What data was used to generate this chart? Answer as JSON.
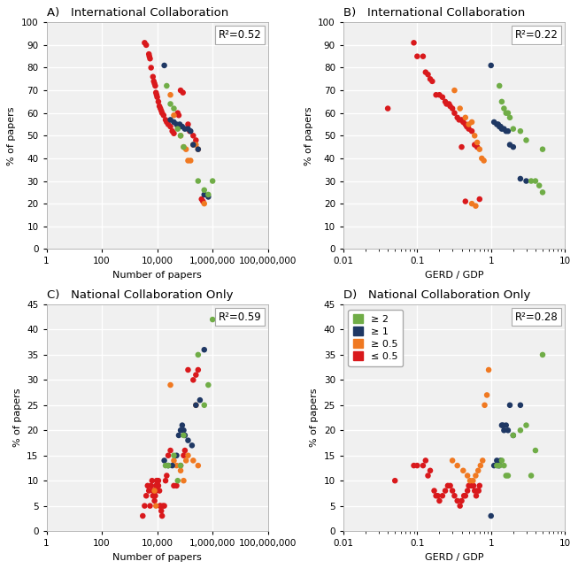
{
  "colors": {
    "red": "#d9191c",
    "orange": "#f07921",
    "blue": "#1f3864",
    "green": "#70ad47"
  },
  "legend": {
    "ge2": "≥ 2",
    "ge1": "≥ 1",
    "ge05": "≥ 0.5",
    "le05": "≤ 0.5"
  },
  "panel_A": {
    "red_x": [
      3500,
      4000,
      5000,
      5200,
      5500,
      6000,
      7000,
      7500,
      8000,
      8500,
      9000,
      9500,
      10000,
      11000,
      12000,
      13000,
      14000,
      15000,
      17000,
      20000,
      22000,
      25000,
      30000,
      35000,
      40000,
      55000,
      60000,
      70000,
      85000,
      130000,
      150000,
      200000,
      250000,
      400000,
      450000
    ],
    "red_y": [
      91,
      90,
      86,
      85,
      84,
      80,
      76,
      74,
      73,
      72,
      69,
      68,
      67,
      65,
      63,
      62,
      61,
      60,
      59,
      57,
      56,
      55,
      54,
      52,
      51,
      60,
      59,
      70,
      69,
      55,
      52,
      50,
      48,
      22,
      21
    ],
    "orange_x": [
      30000,
      40000,
      55000,
      70000,
      90000,
      110000,
      130000,
      160000,
      200000,
      250000,
      300000,
      500000
    ],
    "orange_y": [
      68,
      59,
      54,
      50,
      45,
      44,
      39,
      39,
      46,
      46,
      44,
      20
    ],
    "blue_x": [
      18000,
      30000,
      40000,
      50000,
      65000,
      80000,
      100000,
      130000,
      160000,
      200000,
      300000,
      500000,
      700000
    ],
    "blue_y": [
      81,
      57,
      56,
      55,
      55,
      54,
      53,
      53,
      52,
      46,
      44,
      24,
      23
    ],
    "green_x": [
      22000,
      30000,
      40000,
      55000,
      70000,
      90000,
      300000,
      500000,
      700000,
      1000000
    ],
    "green_y": [
      72,
      64,
      62,
      53,
      50,
      45,
      30,
      26,
      24,
      30
    ]
  },
  "panel_B": {
    "red_x": [
      0.04,
      0.09,
      0.1,
      0.12,
      0.13,
      0.14,
      0.15,
      0.16,
      0.18,
      0.2,
      0.22,
      0.24,
      0.25,
      0.27,
      0.28,
      0.3,
      0.32,
      0.35,
      0.37,
      0.4,
      0.42,
      0.45,
      0.47,
      0.5,
      0.55,
      0.6,
      0.65,
      0.7,
      0.4,
      0.45
    ],
    "red_y": [
      62,
      91,
      85,
      85,
      78,
      77,
      75,
      74,
      68,
      68,
      67,
      65,
      64,
      64,
      63,
      62,
      60,
      58,
      57,
      57,
      56,
      55,
      54,
      53,
      52,
      46,
      45,
      22,
      45,
      21
    ],
    "orange_x": [
      0.32,
      0.38,
      0.45,
      0.5,
      0.55,
      0.6,
      0.65,
      0.7,
      0.75,
      0.8,
      0.55,
      0.62
    ],
    "orange_y": [
      70,
      62,
      58,
      55,
      56,
      50,
      47,
      44,
      40,
      39,
      20,
      19
    ],
    "blue_x": [
      1.0,
      1.1,
      1.2,
      1.25,
      1.3,
      1.35,
      1.4,
      1.5,
      1.6,
      1.7,
      1.8,
      2.0,
      2.5,
      3.0
    ],
    "blue_y": [
      81,
      56,
      55,
      55,
      54,
      54,
      53,
      53,
      52,
      52,
      46,
      45,
      31,
      30
    ],
    "green_x": [
      1.3,
      1.4,
      1.5,
      1.6,
      1.7,
      1.8,
      2.0,
      2.5,
      3.0,
      3.5,
      4.0,
      5.0,
      4.5,
      5.0
    ],
    "green_y": [
      72,
      65,
      62,
      60,
      60,
      58,
      53,
      52,
      48,
      30,
      30,
      44,
      28,
      25
    ]
  },
  "panel_C": {
    "red_x": [
      3000,
      3500,
      4000,
      4500,
      5000,
      5500,
      6000,
      6500,
      7000,
      7000,
      7500,
      8000,
      8000,
      8500,
      9000,
      9000,
      9500,
      10000,
      10000,
      10500,
      11000,
      11000,
      12000,
      12500,
      13000,
      14000,
      15000,
      16000,
      18000,
      20000,
      22000,
      25000,
      30000,
      40000,
      50000,
      70000,
      90000,
      100000,
      130000,
      200000,
      250000,
      300000
    ],
    "red_y": [
      3,
      5,
      7,
      9,
      8,
      5,
      9,
      10,
      8,
      7,
      7,
      6,
      8,
      7,
      8,
      9,
      10,
      9,
      10,
      9,
      9,
      10,
      8,
      5,
      5,
      4,
      3,
      5,
      5,
      10,
      11,
      15,
      16,
      9,
      9,
      13,
      15,
      16,
      32,
      30,
      31,
      32
    ],
    "orange_x": [
      8000,
      9000,
      30000,
      40000,
      50000,
      70000,
      90000,
      110000,
      130000,
      200000,
      250000,
      300000
    ],
    "orange_y": [
      8,
      5,
      29,
      14,
      13,
      12,
      10,
      14,
      15,
      14,
      25,
      13
    ],
    "blue_x": [
      18000,
      25000,
      35000,
      50000,
      60000,
      70000,
      80000,
      90000,
      100000,
      130000,
      180000,
      250000,
      350000,
      500000
    ],
    "blue_y": [
      14,
      13,
      13,
      15,
      19,
      20,
      21,
      20,
      19,
      18,
      17,
      25,
      26,
      36
    ],
    "green_x": [
      20000,
      25000,
      40000,
      55000,
      70000,
      90000,
      300000,
      500000,
      700000,
      1000000
    ],
    "green_y": [
      13,
      13,
      15,
      10,
      13,
      19,
      35,
      25,
      29,
      42
    ]
  },
  "panel_D": {
    "red_x": [
      0.05,
      0.09,
      0.1,
      0.12,
      0.13,
      0.14,
      0.15,
      0.17,
      0.18,
      0.19,
      0.2,
      0.22,
      0.24,
      0.26,
      0.28,
      0.3,
      0.32,
      0.35,
      0.38,
      0.4,
      0.43,
      0.45,
      0.48,
      0.5,
      0.52,
      0.55,
      0.58,
      0.6,
      0.63,
      0.65,
      0.68,
      0.7
    ],
    "red_y": [
      10,
      13,
      13,
      13,
      14,
      11,
      12,
      8,
      7,
      7,
      6,
      7,
      8,
      9,
      9,
      8,
      7,
      6,
      5,
      6,
      7,
      7,
      8,
      9,
      9,
      9,
      9,
      8,
      7,
      8,
      8,
      9
    ],
    "orange_x": [
      0.3,
      0.35,
      0.42,
      0.48,
      0.52,
      0.57,
      0.62,
      0.67,
      0.72,
      0.77,
      0.82,
      0.88,
      0.93
    ],
    "orange_y": [
      14,
      13,
      12,
      11,
      10,
      10,
      11,
      12,
      13,
      14,
      25,
      27,
      32
    ],
    "blue_x": [
      1.0,
      1.1,
      1.2,
      1.25,
      1.3,
      1.35,
      1.4,
      1.45,
      1.5,
      1.6,
      1.7,
      1.8,
      2.0,
      2.5
    ],
    "blue_y": [
      3,
      13,
      14,
      13,
      13,
      14,
      21,
      21,
      20,
      21,
      20,
      25,
      19,
      25
    ],
    "green_x": [
      1.2,
      1.3,
      1.4,
      1.5,
      1.6,
      1.7,
      2.0,
      2.5,
      3.0,
      3.5,
      4.0,
      5.0
    ],
    "green_y": [
      13,
      13,
      14,
      13,
      11,
      11,
      19,
      20,
      21,
      11,
      16,
      35
    ]
  }
}
